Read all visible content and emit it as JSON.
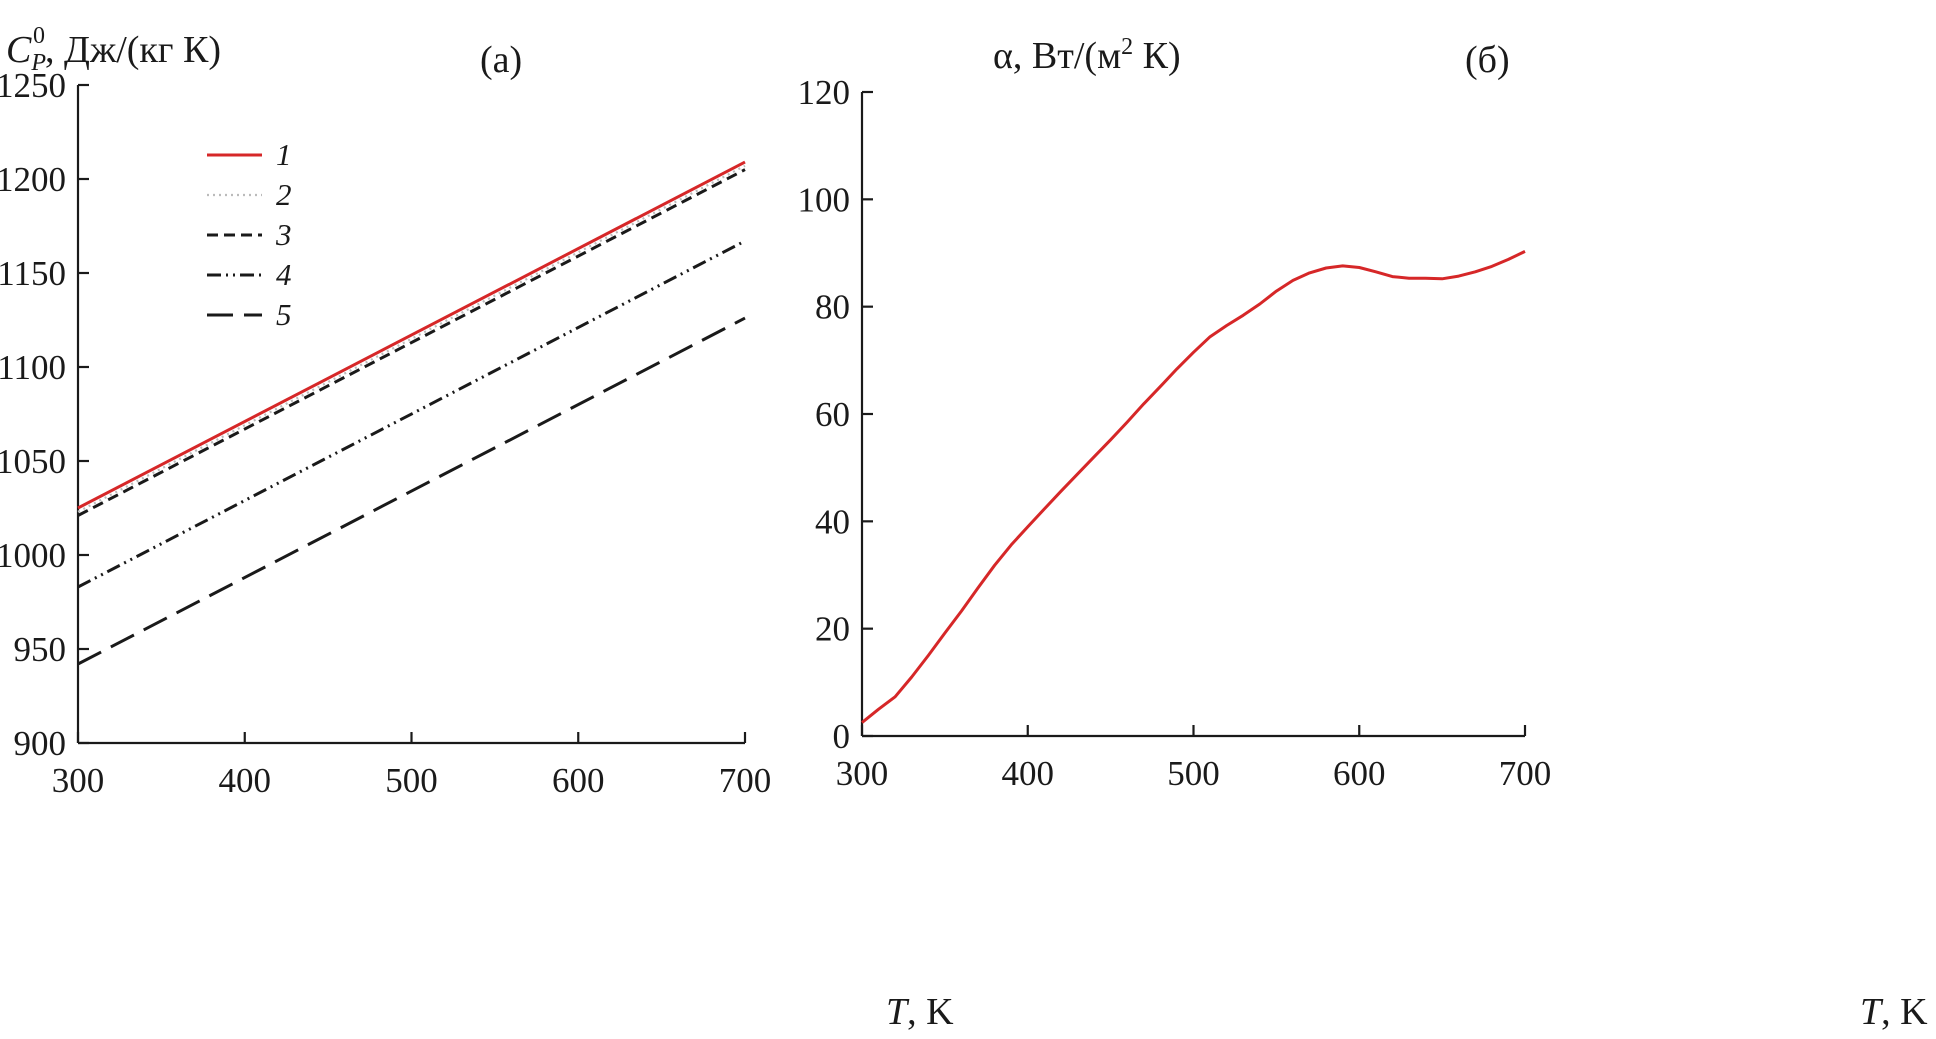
{
  "chart_data": [
    {
      "type": "line",
      "panel": "(a)",
      "ylabel_symbol": "C",
      "ylabel_sub": "P",
      "ylabel_sup": "0",
      "ylabel_unit": ", Дж/(кг К)",
      "xlabel_var": "T",
      "xlabel_unit": ", K",
      "xlim": [
        300,
        700
      ],
      "ylim": [
        900,
        1250
      ],
      "xticks": [
        "300",
        "400",
        "500",
        "600",
        "700"
      ],
      "yticks": [
        "900",
        "950",
        "1000",
        "1050",
        "1100",
        "1150",
        "1200",
        "1250"
      ],
      "grid": false,
      "legend_position": "top-left",
      "series": [
        {
          "name": "1",
          "color": "#d62728",
          "dash": "solid",
          "x": [
            300,
            700
          ],
          "y": [
            1025,
            1209
          ]
        },
        {
          "name": "2",
          "color": "#bbbbbb",
          "dash": "dotted",
          "x": [
            300,
            700
          ],
          "y": [
            1023,
            1207
          ]
        },
        {
          "name": "3",
          "color": "#1a1a1a",
          "dash": "dashed",
          "x": [
            300,
            700
          ],
          "y": [
            1021,
            1205
          ]
        },
        {
          "name": "4",
          "color": "#1a1a1a",
          "dash": "dash-dot-dot",
          "x": [
            300,
            700
          ],
          "y": [
            983,
            1167
          ]
        },
        {
          "name": "5",
          "color": "#1a1a1a",
          "dash": "long-dash",
          "x": [
            300,
            700
          ],
          "y": [
            942,
            1126
          ]
        }
      ]
    },
    {
      "type": "line",
      "panel": "(б)",
      "ylabel_symbol": "α",
      "ylabel_unit": ", Вт/(м",
      "ylabel_sup": "2",
      "ylabel_unit_tail": " К)",
      "xlabel_var": "T",
      "xlabel_unit": ", K",
      "xlim": [
        300,
        700
      ],
      "ylim": [
        0,
        120
      ],
      "xticks": [
        "300",
        "400",
        "500",
        "600",
        "700"
      ],
      "yticks": [
        "0",
        "20",
        "40",
        "60",
        "80",
        "100",
        "120"
      ],
      "grid": false,
      "series": [
        {
          "name": "1",
          "color": "#d62728",
          "dash": "solid",
          "x": [
            300,
            310,
            320,
            330,
            340,
            350,
            360,
            370,
            380,
            390,
            400,
            410,
            420,
            430,
            440,
            450,
            460,
            470,
            480,
            490,
            500,
            510,
            520,
            530,
            540,
            550,
            560,
            570,
            580,
            590,
            600,
            610,
            620,
            630,
            640,
            650,
            660,
            670,
            680,
            690,
            700
          ],
          "y": [
            2.5,
            5.0,
            7.3,
            11.0,
            15.0,
            19.2,
            23.3,
            27.6,
            31.8,
            35.6,
            39.0,
            42.3,
            45.6,
            48.8,
            52.0,
            55.2,
            58.5,
            61.9,
            65.1,
            68.4,
            71.5,
            74.4,
            76.5,
            78.4,
            80.5,
            82.9,
            84.9,
            86.3,
            87.2,
            87.6,
            87.3,
            86.5,
            85.6,
            85.3,
            85.3,
            85.2,
            85.7,
            86.5,
            87.5,
            88.8,
            90.3
          ]
        }
      ]
    }
  ]
}
